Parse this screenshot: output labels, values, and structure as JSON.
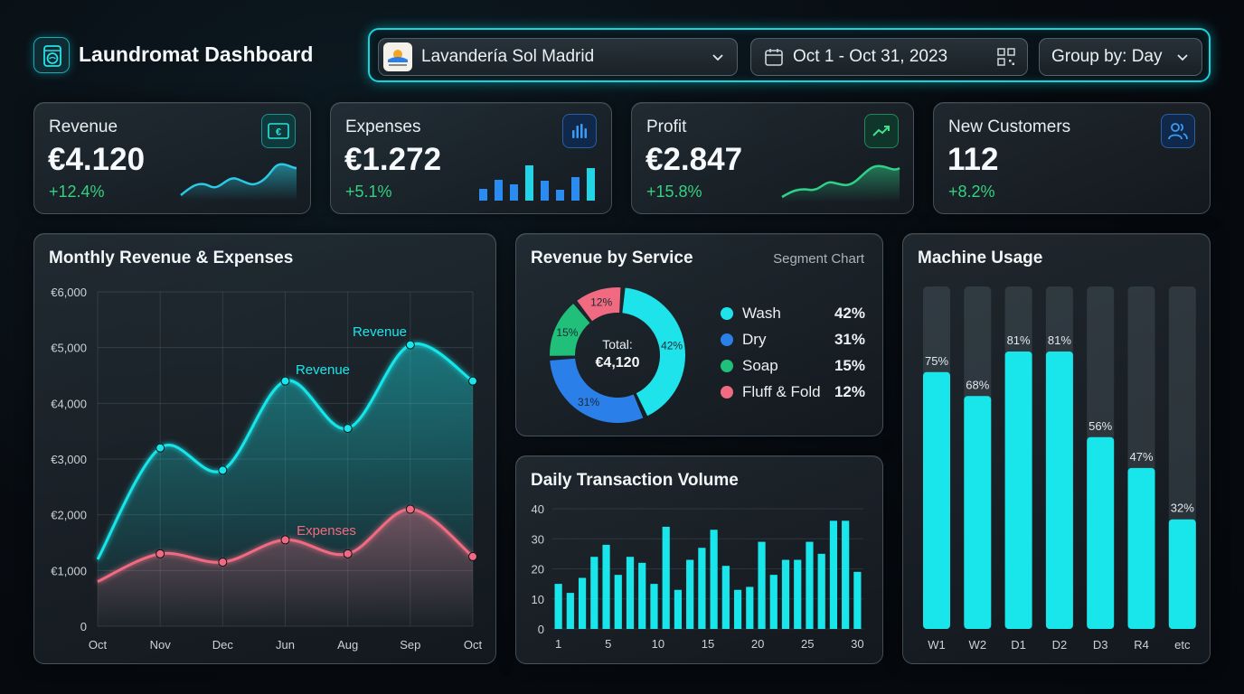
{
  "header": {
    "title": "Laundromat Dashboard",
    "location": "Lavandería Sol Madrid",
    "date_range": "Oct 1 - Oct 31, 2023",
    "group_by": "Group by: Day"
  },
  "kpis": [
    {
      "label": "Revenue",
      "value": "€4.120",
      "delta": "+12.4%",
      "icon": "euro-icon",
      "accent": "#29d3d6"
    },
    {
      "label": "Expenses",
      "value": "€1.272",
      "delta": "+5.1%",
      "icon": "bar-chart-icon",
      "accent": "#2a8cf0"
    },
    {
      "label": "Profit",
      "value": "€2.847",
      "delta": "+15.8%",
      "icon": "trending-up-icon",
      "accent": "#2fd08a"
    },
    {
      "label": "New Customers",
      "value": "112",
      "delta": "+8.2%",
      "icon": "users-icon",
      "accent": "#2a8cf0"
    }
  ],
  "colors": {
    "cyan": "#19e6ea",
    "pink": "#f06b82",
    "blue": "#2a7fe8",
    "green": "#21c07a",
    "delta": "#35d17f"
  },
  "revenue_panel": {
    "title": "Monthly Revenue & Expenses",
    "label_revenue": "Revenue",
    "label_expenses": "Expenses"
  },
  "service_panel": {
    "title": "Revenue by Service",
    "subtitle": "Segment Chart",
    "total_label": "Total:",
    "total_value": "€4,120"
  },
  "daily_panel": {
    "title": "Daily Transaction Volume"
  },
  "machine_panel": {
    "title": "Machine Usage"
  },
  "chart_data": [
    {
      "type": "line",
      "title": "Monthly Revenue & Expenses",
      "categories": [
        "Oct",
        "Nov",
        "Dec",
        "Jun",
        "Aug",
        "Sep",
        "Oct"
      ],
      "y_ticks": [
        "€6,000",
        "€5,000",
        "€4,000",
        "€3,000",
        "€2,000",
        "€1,000",
        "0"
      ],
      "ylim": [
        0,
        6000
      ],
      "grid": true,
      "series": [
        {
          "name": "Revenue",
          "values": [
            1200,
            3200,
            2800,
            4400,
            3550,
            5050,
            4400
          ],
          "color": "#19e6ea"
        },
        {
          "name": "Expenses",
          "values": [
            800,
            1300,
            1150,
            1550,
            1300,
            2100,
            1250
          ],
          "color": "#f06b82"
        }
      ]
    },
    {
      "type": "pie",
      "title": "Revenue by Service",
      "labels": [
        "Wash",
        "Dry",
        "Soap",
        "Fluff & Fold"
      ],
      "values": [
        42,
        31,
        15,
        12
      ],
      "pct_labels": [
        "42%",
        "31%",
        "15%",
        "12%"
      ],
      "colors": [
        "#1ee3ea",
        "#2a7fe8",
        "#21c07a",
        "#f06b82"
      ]
    },
    {
      "type": "bar",
      "title": "Daily Transaction Volume",
      "x_ticks": [
        "1",
        "5",
        "10",
        "15",
        "20",
        "25",
        "30"
      ],
      "y_ticks": [
        "40",
        "30",
        "20",
        "10",
        "0"
      ],
      "ylim": [
        0,
        40
      ],
      "values": [
        15,
        12,
        17,
        24,
        28,
        18,
        24,
        22,
        15,
        34,
        13,
        23,
        27,
        33,
        21,
        13,
        14,
        29,
        18,
        23,
        23,
        29,
        25,
        36,
        36,
        19
      ],
      "color": "#19e6ea"
    },
    {
      "type": "bar",
      "title": "Machine Usage",
      "categories": [
        "W1",
        "W2",
        "D1",
        "D2",
        "D3",
        "R4",
        "etc"
      ],
      "values": [
        75,
        68,
        81,
        81,
        56,
        47,
        32
      ],
      "value_labels": [
        "75%",
        "68%",
        "81%",
        "81%",
        "56%",
        "47%",
        "32%"
      ],
      "ylim": [
        0,
        100
      ],
      "color": "#19e6ea"
    }
  ]
}
